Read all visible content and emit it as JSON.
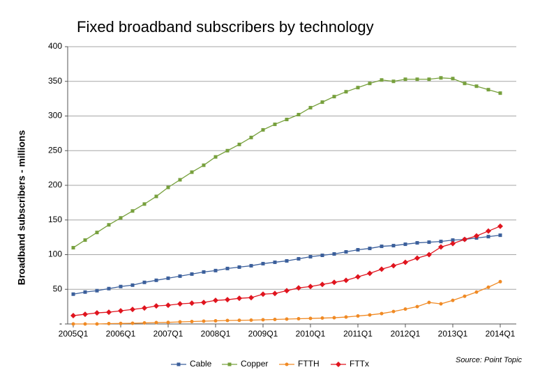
{
  "chart_data": {
    "type": "line",
    "title": "Fixed broadband subscribers by technology",
    "y_label": "Broadband subscribers - millions",
    "source": "Source: Point Topic",
    "categories": [
      "2005Q1",
      null,
      null,
      null,
      "2006Q1",
      null,
      null,
      null,
      "2007Q1",
      null,
      null,
      null,
      "2008Q1",
      null,
      null,
      null,
      "2009Q1",
      null,
      null,
      null,
      "2010Q1",
      null,
      null,
      null,
      "2011Q1",
      null,
      null,
      null,
      "2012Q1",
      null,
      null,
      null,
      "2013Q1",
      null,
      null,
      null,
      "2014Q1"
    ],
    "series": [
      {
        "name": "Cable",
        "color": "#3b5f9b",
        "marker": "square",
        "values": [
          43,
          46,
          48,
          51,
          54,
          56,
          60,
          63,
          66,
          69,
          72,
          75,
          77,
          80,
          82,
          84,
          87,
          89,
          91,
          94,
          97,
          99,
          101,
          104,
          107,
          109,
          112,
          113,
          115,
          117,
          118,
          119,
          121,
          122,
          124,
          126,
          128
        ]
      },
      {
        "name": "Copper",
        "color": "#77a03d",
        "marker": "square",
        "values": [
          110,
          121,
          132,
          143,
          153,
          163,
          173,
          184,
          197,
          208,
          219,
          229,
          241,
          250,
          259,
          269,
          280,
          288,
          295,
          302,
          312,
          320,
          328,
          335,
          341,
          347,
          352,
          350,
          353,
          353,
          353,
          355,
          354,
          347,
          343,
          338,
          333
        ]
      },
      {
        "name": "FTTH",
        "color": "#f08a24",
        "marker": "circle",
        "values": [
          0,
          0,
          0,
          0.5,
          0.7,
          1,
          1.5,
          2,
          2.3,
          3,
          3.5,
          4,
          4.5,
          5,
          5.3,
          5.5,
          6,
          6.5,
          7,
          7.5,
          8,
          8.5,
          9,
          10,
          11.5,
          13,
          15,
          18,
          21.5,
          25,
          31,
          29,
          34,
          40,
          46,
          53,
          61
        ]
      },
      {
        "name": "FTTx",
        "color": "#e0141e",
        "marker": "diamond",
        "values": [
          12,
          14,
          16,
          17,
          19,
          21,
          23,
          26,
          27,
          29,
          30,
          31,
          34,
          35,
          37,
          38,
          43,
          44,
          48,
          52,
          54,
          57,
          60,
          63,
          68,
          73,
          79,
          84,
          89,
          95,
          100,
          111,
          116,
          122,
          127,
          134,
          141
        ]
      }
    ],
    "ylim": [
      0,
      400
    ],
    "yticks": [
      {
        "value": 0,
        "label": "-"
      },
      50,
      100,
      150,
      200,
      250,
      300,
      350,
      400
    ],
    "grid": true,
    "legend": "bottom"
  }
}
